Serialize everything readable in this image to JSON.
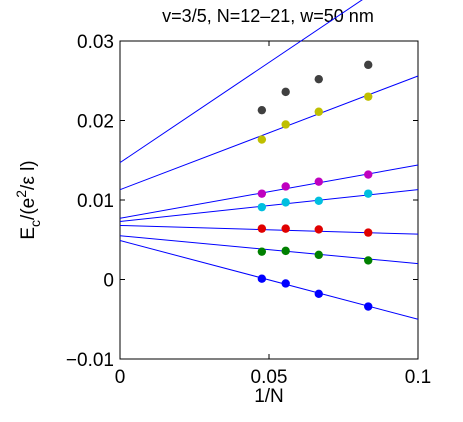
{
  "chart_data": {
    "type": "scatter",
    "title": "v=3/5, N=12–21, w=50 nm",
    "xlabel": "1/N",
    "ylabel": {
      "prefix": "E",
      "sub": "c",
      "mid": "/(e",
      "sup": "2",
      "end": "/ε l)"
    },
    "xlim": [
      0,
      0.1
    ],
    "ylim": [
      -0.01,
      0.03
    ],
    "xticks": [
      0,
      0.05,
      0.1
    ],
    "xtick_labels": [
      "0",
      "0.05",
      "0.1"
    ],
    "yticks": [
      -0.01,
      0,
      0.01,
      0.02,
      0.03
    ],
    "ytick_labels": [
      "−0.01",
      "0",
      "0.01",
      "0.02",
      "0.03"
    ],
    "grid": false,
    "fit_line_color": "#0000ff",
    "x": [
      0.0476,
      0.0556,
      0.0667,
      0.0833
    ],
    "series": [
      {
        "color": "#404040",
        "values": [
          0.0213,
          0.0236,
          0.0252,
          0.027
        ],
        "fit": [
          0.0147,
          0.0399
        ]
      },
      {
        "color": "#bfbf00",
        "values": [
          0.0176,
          0.0195,
          0.0211,
          0.023
        ],
        "fit": [
          0.0113,
          0.0256
        ]
      },
      {
        "color": "#bf00bf",
        "values": [
          0.0108,
          0.0117,
          0.0123,
          0.0132
        ],
        "fit": [
          0.0077,
          0.0144
        ]
      },
      {
        "color": "#00bfdf",
        "values": [
          0.0091,
          0.0097,
          0.0099,
          0.0108
        ],
        "fit": [
          0.0073,
          0.0113
        ]
      },
      {
        "color": "#e00000",
        "values": [
          0.0064,
          0.0064,
          0.0063,
          0.0059
        ],
        "fit": [
          0.0068,
          0.0057
        ]
      },
      {
        "color": "#008000",
        "values": [
          0.0035,
          0.0036,
          0.0031,
          0.0024
        ],
        "fit": [
          0.0055,
          0.002
        ]
      },
      {
        "color": "#0000ff",
        "values": [
          0.0001,
          -0.0005,
          -0.0018,
          -0.0034
        ],
        "fit": [
          0.0049,
          -0.005
        ]
      }
    ]
  }
}
